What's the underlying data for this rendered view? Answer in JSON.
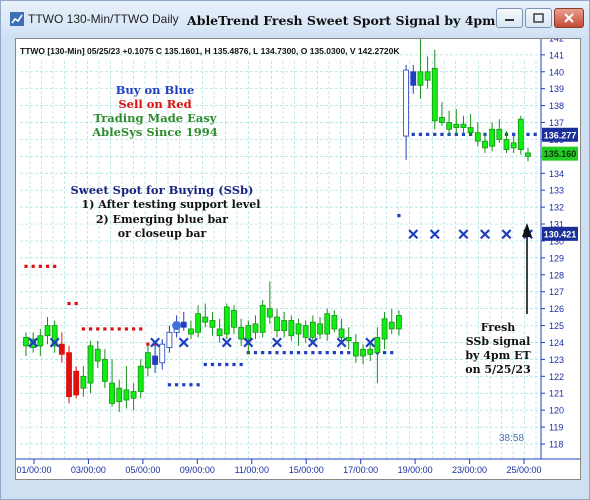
{
  "window": {
    "title": "TTWO 130-Min/TTWO Daily",
    "chart_heading": "AbleTrend Fresh Sweet Sport Signal by 4pm ET",
    "buttons": [
      "minimize",
      "maximize",
      "close"
    ]
  },
  "info_line": "TTWO [130-Min] 05/25/23 +0.1075 C 135.1601, H 135.4876, L 134.7300, O 135.0300, V 142.2720K",
  "legend": {
    "line1": "Buy on Blue",
    "line2": "Sell on Red",
    "line3": "Trading Made Easy",
    "line4": "AbleSys Since 1994"
  },
  "ssb_note": {
    "title": "Sweet Spot for Buying (SSb)",
    "item1": "1) After testing support level",
    "item2": "2) Emerging blue bar",
    "item3": "or closeup bar"
  },
  "annotation": {
    "line1": "Fresh",
    "line2": "SSb signal",
    "line3": "by 4pm ET",
    "line4": "on 5/25/23"
  },
  "countdown": "38:58",
  "colors": {
    "blue": "#1f3fbf",
    "red": "#e01010",
    "green": "#11ee11",
    "grid": "#a6e0e0",
    "legend_green": "#2e8b2e"
  },
  "chart_data": {
    "type": "candlestick",
    "ylim": [
      117.5,
      143.5
    ],
    "yticks": [
      118,
      119,
      120,
      121,
      122,
      123,
      124,
      125,
      126,
      127,
      128,
      129,
      130,
      131,
      132,
      133,
      134,
      135,
      136,
      137,
      138,
      139,
      140,
      141,
      142,
      143
    ],
    "xticks": [
      "01/00:00",
      "03/00:00",
      "05/00:00",
      "09/00:00",
      "11/00:00",
      "15/00:00",
      "17/00:00",
      "19/00:00",
      "23/00:00",
      "25/00:00"
    ],
    "price_labels": [
      {
        "value": 136.277,
        "text": "136.277",
        "kind": "blue"
      },
      {
        "value": 135.16,
        "text": "135.160",
        "kind": "green"
      },
      {
        "value": 130.421,
        "text": "130.421",
        "kind": "blue"
      }
    ],
    "bars": [
      {
        "o": 123.8,
        "h": 124.6,
        "l": 123.2,
        "c": 124.3,
        "color": "green"
      },
      {
        "o": 124.2,
        "h": 124.6,
        "l": 123.4,
        "c": 123.7,
        "color": "green"
      },
      {
        "o": 123.8,
        "h": 124.8,
        "l": 123.2,
        "c": 124.4,
        "color": "green"
      },
      {
        "o": 124.4,
        "h": 125.5,
        "l": 123.9,
        "c": 125.0,
        "color": "green"
      },
      {
        "o": 125.0,
        "h": 125.3,
        "l": 123.4,
        "c": 123.8,
        "color": "green"
      },
      {
        "o": 123.9,
        "h": 124.6,
        "l": 122.8,
        "c": 123.3,
        "color": "red"
      },
      {
        "o": 123.4,
        "h": 123.8,
        "l": 120.4,
        "c": 120.8,
        "color": "red"
      },
      {
        "o": 120.9,
        "h": 122.6,
        "l": 120.7,
        "c": 122.3,
        "color": "red"
      },
      {
        "o": 122.0,
        "h": 122.6,
        "l": 120.8,
        "c": 121.3,
        "color": "green"
      },
      {
        "o": 121.6,
        "h": 124.1,
        "l": 121.0,
        "c": 123.8,
        "color": "green"
      },
      {
        "o": 123.6,
        "h": 124.1,
        "l": 122.5,
        "c": 122.9,
        "color": "green"
      },
      {
        "o": 123.0,
        "h": 123.6,
        "l": 121.3,
        "c": 121.7,
        "color": "green"
      },
      {
        "o": 121.6,
        "h": 123.0,
        "l": 120.2,
        "c": 120.4,
        "color": "green"
      },
      {
        "o": 120.5,
        "h": 121.8,
        "l": 119.9,
        "c": 121.3,
        "color": "green"
      },
      {
        "o": 121.2,
        "h": 122.6,
        "l": 120.1,
        "c": 120.6,
        "color": "green"
      },
      {
        "o": 120.7,
        "h": 121.6,
        "l": 120.0,
        "c": 121.1,
        "color": "green"
      },
      {
        "o": 121.1,
        "h": 123.0,
        "l": 120.7,
        "c": 122.6,
        "color": "green"
      },
      {
        "o": 122.5,
        "h": 123.8,
        "l": 122.0,
        "c": 123.4,
        "color": "green"
      },
      {
        "o": 123.2,
        "h": 123.8,
        "l": 122.2,
        "c": 122.7,
        "color": "blue"
      },
      {
        "o": 122.8,
        "h": 124.2,
        "l": 122.4,
        "c": 123.9,
        "color": "blue"
      },
      {
        "o": 123.7,
        "h": 125.0,
        "l": 123.4,
        "c": 124.6,
        "color": "blue"
      },
      {
        "o": 124.6,
        "h": 125.6,
        "l": 124.3,
        "c": 125.2,
        "color": "blue"
      },
      {
        "o": 125.2,
        "h": 125.8,
        "l": 124.7,
        "c": 124.9,
        "color": "blue"
      },
      {
        "o": 124.8,
        "h": 125.3,
        "l": 124.2,
        "c": 124.5,
        "color": "green"
      },
      {
        "o": 124.6,
        "h": 126.2,
        "l": 124.3,
        "c": 125.7,
        "color": "green"
      },
      {
        "o": 125.5,
        "h": 126.3,
        "l": 124.9,
        "c": 125.2,
        "color": "green"
      },
      {
        "o": 125.3,
        "h": 125.8,
        "l": 124.4,
        "c": 124.9,
        "color": "green"
      },
      {
        "o": 124.8,
        "h": 125.4,
        "l": 124.0,
        "c": 124.4,
        "color": "green"
      },
      {
        "o": 124.5,
        "h": 126.3,
        "l": 124.2,
        "c": 126.1,
        "color": "green"
      },
      {
        "o": 125.9,
        "h": 126.2,
        "l": 124.5,
        "c": 124.9,
        "color": "green"
      },
      {
        "o": 124.9,
        "h": 125.4,
        "l": 123.8,
        "c": 124.2,
        "color": "green"
      },
      {
        "o": 124.2,
        "h": 125.3,
        "l": 123.3,
        "c": 125.0,
        "color": "green"
      },
      {
        "o": 125.1,
        "h": 125.6,
        "l": 124.2,
        "c": 124.6,
        "color": "green"
      },
      {
        "o": 124.6,
        "h": 126.5,
        "l": 124.3,
        "c": 126.2,
        "color": "green"
      },
      {
        "o": 126.0,
        "h": 127.6,
        "l": 125.1,
        "c": 125.5,
        "color": "green"
      },
      {
        "o": 125.5,
        "h": 126.0,
        "l": 124.3,
        "c": 124.7,
        "color": "green"
      },
      {
        "o": 124.7,
        "h": 125.8,
        "l": 124.3,
        "c": 125.3,
        "color": "green"
      },
      {
        "o": 125.3,
        "h": 125.6,
        "l": 124.1,
        "c": 124.4,
        "color": "green"
      },
      {
        "o": 124.5,
        "h": 125.4,
        "l": 123.8,
        "c": 125.1,
        "color": "green"
      },
      {
        "o": 125.0,
        "h": 125.3,
        "l": 124.0,
        "c": 124.3,
        "color": "green"
      },
      {
        "o": 124.3,
        "h": 125.6,
        "l": 123.9,
        "c": 125.2,
        "color": "green"
      },
      {
        "o": 125.1,
        "h": 125.5,
        "l": 124.2,
        "c": 124.5,
        "color": "green"
      },
      {
        "o": 124.5,
        "h": 126.0,
        "l": 124.1,
        "c": 125.7,
        "color": "green"
      },
      {
        "o": 125.6,
        "h": 125.9,
        "l": 124.6,
        "c": 124.8,
        "color": "green"
      },
      {
        "o": 124.8,
        "h": 125.4,
        "l": 124.0,
        "c": 124.3,
        "color": "green"
      },
      {
        "o": 124.3,
        "h": 124.9,
        "l": 123.6,
        "c": 124.1,
        "color": "green"
      },
      {
        "o": 124.0,
        "h": 124.5,
        "l": 122.8,
        "c": 123.2,
        "color": "green"
      },
      {
        "o": 123.2,
        "h": 123.9,
        "l": 122.7,
        "c": 123.6,
        "color": "green"
      },
      {
        "o": 123.6,
        "h": 124.0,
        "l": 122.9,
        "c": 123.3,
        "color": "green"
      },
      {
        "o": 123.4,
        "h": 124.9,
        "l": 121.6,
        "c": 124.3,
        "color": "green"
      },
      {
        "o": 124.2,
        "h": 125.8,
        "l": 123.6,
        "c": 125.4,
        "color": "green"
      },
      {
        "o": 125.2,
        "h": 126.0,
        "l": 124.5,
        "c": 124.8,
        "color": "green"
      },
      {
        "o": 124.8,
        "h": 125.9,
        "l": 124.4,
        "c": 125.6,
        "color": "green"
      },
      {
        "o": 136.2,
        "h": 140.4,
        "l": 134.8,
        "c": 140.1,
        "color": "blue"
      },
      {
        "o": 140.0,
        "h": 140.4,
        "l": 138.7,
        "c": 139.2,
        "color": "blue"
      },
      {
        "o": 139.2,
        "h": 142.1,
        "l": 138.4,
        "c": 140.0,
        "color": "green"
      },
      {
        "o": 140.0,
        "h": 140.9,
        "l": 139.0,
        "c": 139.5,
        "color": "green"
      },
      {
        "o": 140.2,
        "h": 141.3,
        "l": 136.6,
        "c": 137.1,
        "color": "green"
      },
      {
        "o": 137.3,
        "h": 138.2,
        "l": 136.8,
        "c": 137.0,
        "color": "green"
      },
      {
        "o": 137.0,
        "h": 137.7,
        "l": 136.2,
        "c": 136.6,
        "color": "green"
      },
      {
        "o": 136.7,
        "h": 137.8,
        "l": 136.3,
        "c": 136.9,
        "color": "green"
      },
      {
        "o": 136.9,
        "h": 137.4,
        "l": 136.3,
        "c": 136.7,
        "color": "green"
      },
      {
        "o": 136.7,
        "h": 137.5,
        "l": 136.2,
        "c": 136.4,
        "color": "green"
      },
      {
        "o": 136.4,
        "h": 137.0,
        "l": 135.6,
        "c": 135.9,
        "color": "green"
      },
      {
        "o": 135.9,
        "h": 136.4,
        "l": 135.2,
        "c": 135.5,
        "color": "green"
      },
      {
        "o": 135.6,
        "h": 137.0,
        "l": 135.3,
        "c": 136.6,
        "color": "green"
      },
      {
        "o": 136.6,
        "h": 137.2,
        "l": 135.8,
        "c": 136.0,
        "color": "green"
      },
      {
        "o": 136.0,
        "h": 136.5,
        "l": 135.2,
        "c": 135.4,
        "color": "green"
      },
      {
        "o": 135.5,
        "h": 136.2,
        "l": 135.2,
        "c": 135.8,
        "color": "green"
      },
      {
        "o": 137.2,
        "h": 137.4,
        "l": 135.1,
        "c": 135.4,
        "color": "green"
      },
      {
        "o": 135.0,
        "h": 135.5,
        "l": 134.7,
        "c": 135.2,
        "color": "green"
      }
    ],
    "red_stops": [
      {
        "i": 0,
        "v": 128.5
      },
      {
        "i": 1,
        "v": 128.5
      },
      {
        "i": 2,
        "v": 128.5
      },
      {
        "i": 3,
        "v": 128.5
      },
      {
        "i": 4,
        "v": 128.5
      },
      {
        "i": 6,
        "v": 126.3
      },
      {
        "i": 7,
        "v": 126.3
      },
      {
        "i": 8,
        "v": 124.8
      },
      {
        "i": 9,
        "v": 124.8
      },
      {
        "i": 10,
        "v": 124.8
      },
      {
        "i": 11,
        "v": 124.8
      },
      {
        "i": 12,
        "v": 124.8
      },
      {
        "i": 13,
        "v": 124.8
      },
      {
        "i": 14,
        "v": 124.8
      },
      {
        "i": 15,
        "v": 124.8
      },
      {
        "i": 16,
        "v": 124.8
      },
      {
        "i": 17,
        "v": 123.9
      },
      {
        "i": 18,
        "v": 123.9
      }
    ],
    "blue_stops": [
      {
        "i": 20,
        "v": 121.5
      },
      {
        "i": 21,
        "v": 121.5
      },
      {
        "i": 22,
        "v": 121.5
      },
      {
        "i": 23,
        "v": 121.5
      },
      {
        "i": 24,
        "v": 121.5
      },
      {
        "i": 25,
        "v": 122.7
      },
      {
        "i": 26,
        "v": 122.7
      },
      {
        "i": 27,
        "v": 122.7
      },
      {
        "i": 28,
        "v": 122.7
      },
      {
        "i": 29,
        "v": 122.7
      },
      {
        "i": 30,
        "v": 122.7
      },
      {
        "i": 31,
        "v": 123.4
      },
      {
        "i": 32,
        "v": 123.4
      },
      {
        "i": 33,
        "v": 123.4
      },
      {
        "i": 34,
        "v": 123.4
      },
      {
        "i": 35,
        "v": 123.4
      },
      {
        "i": 36,
        "v": 123.4
      },
      {
        "i": 37,
        "v": 123.4
      },
      {
        "i": 38,
        "v": 123.4
      },
      {
        "i": 39,
        "v": 123.4
      },
      {
        "i": 40,
        "v": 123.4
      },
      {
        "i": 41,
        "v": 123.4
      },
      {
        "i": 42,
        "v": 123.4
      },
      {
        "i": 43,
        "v": 123.4
      },
      {
        "i": 44,
        "v": 123.4
      },
      {
        "i": 45,
        "v": 123.4
      },
      {
        "i": 46,
        "v": 123.4
      },
      {
        "i": 47,
        "v": 123.4
      },
      {
        "i": 48,
        "v": 123.4
      },
      {
        "i": 49,
        "v": 123.4
      },
      {
        "i": 50,
        "v": 123.4
      },
      {
        "i": 51,
        "v": 123.4
      },
      {
        "i": 52,
        "v": 131.5
      },
      {
        "i": 53,
        "v": 136.3
      },
      {
        "i": 54,
        "v": 136.3
      },
      {
        "i": 55,
        "v": 136.3
      },
      {
        "i": 56,
        "v": 136.3
      },
      {
        "i": 57,
        "v": 136.3
      },
      {
        "i": 58,
        "v": 136.3
      },
      {
        "i": 59,
        "v": 136.3
      },
      {
        "i": 60,
        "v": 136.3
      },
      {
        "i": 61,
        "v": 136.3
      },
      {
        "i": 62,
        "v": 136.3
      },
      {
        "i": 63,
        "v": 136.3
      },
      {
        "i": 64,
        "v": 136.3
      },
      {
        "i": 65,
        "v": 136.3
      },
      {
        "i": 66,
        "v": 136.3
      },
      {
        "i": 67,
        "v": 136.3
      },
      {
        "i": 68,
        "v": 136.3
      },
      {
        "i": 69,
        "v": 136.3
      },
      {
        "i": 70,
        "v": 136.3
      },
      {
        "i": 71,
        "v": 136.3
      }
    ],
    "x_marks": [
      {
        "i": 1,
        "v": 124.0
      },
      {
        "i": 4,
        "v": 124.0
      },
      {
        "i": 18,
        "v": 124.0
      },
      {
        "i": 22,
        "v": 124.0
      },
      {
        "i": 28,
        "v": 124.0
      },
      {
        "i": 31,
        "v": 124.0
      },
      {
        "i": 35,
        "v": 124.0
      },
      {
        "i": 40,
        "v": 124.0
      },
      {
        "i": 44,
        "v": 124.0
      },
      {
        "i": 48,
        "v": 124.0
      },
      {
        "i": 54,
        "v": 130.4
      },
      {
        "i": 57,
        "v": 130.4
      },
      {
        "i": 61,
        "v": 130.4
      },
      {
        "i": 64,
        "v": 130.4
      },
      {
        "i": 67,
        "v": 130.4
      },
      {
        "i": 70,
        "v": 130.4
      }
    ],
    "circle_marks": [
      {
        "i": 21,
        "v": 125.0
      }
    ]
  }
}
